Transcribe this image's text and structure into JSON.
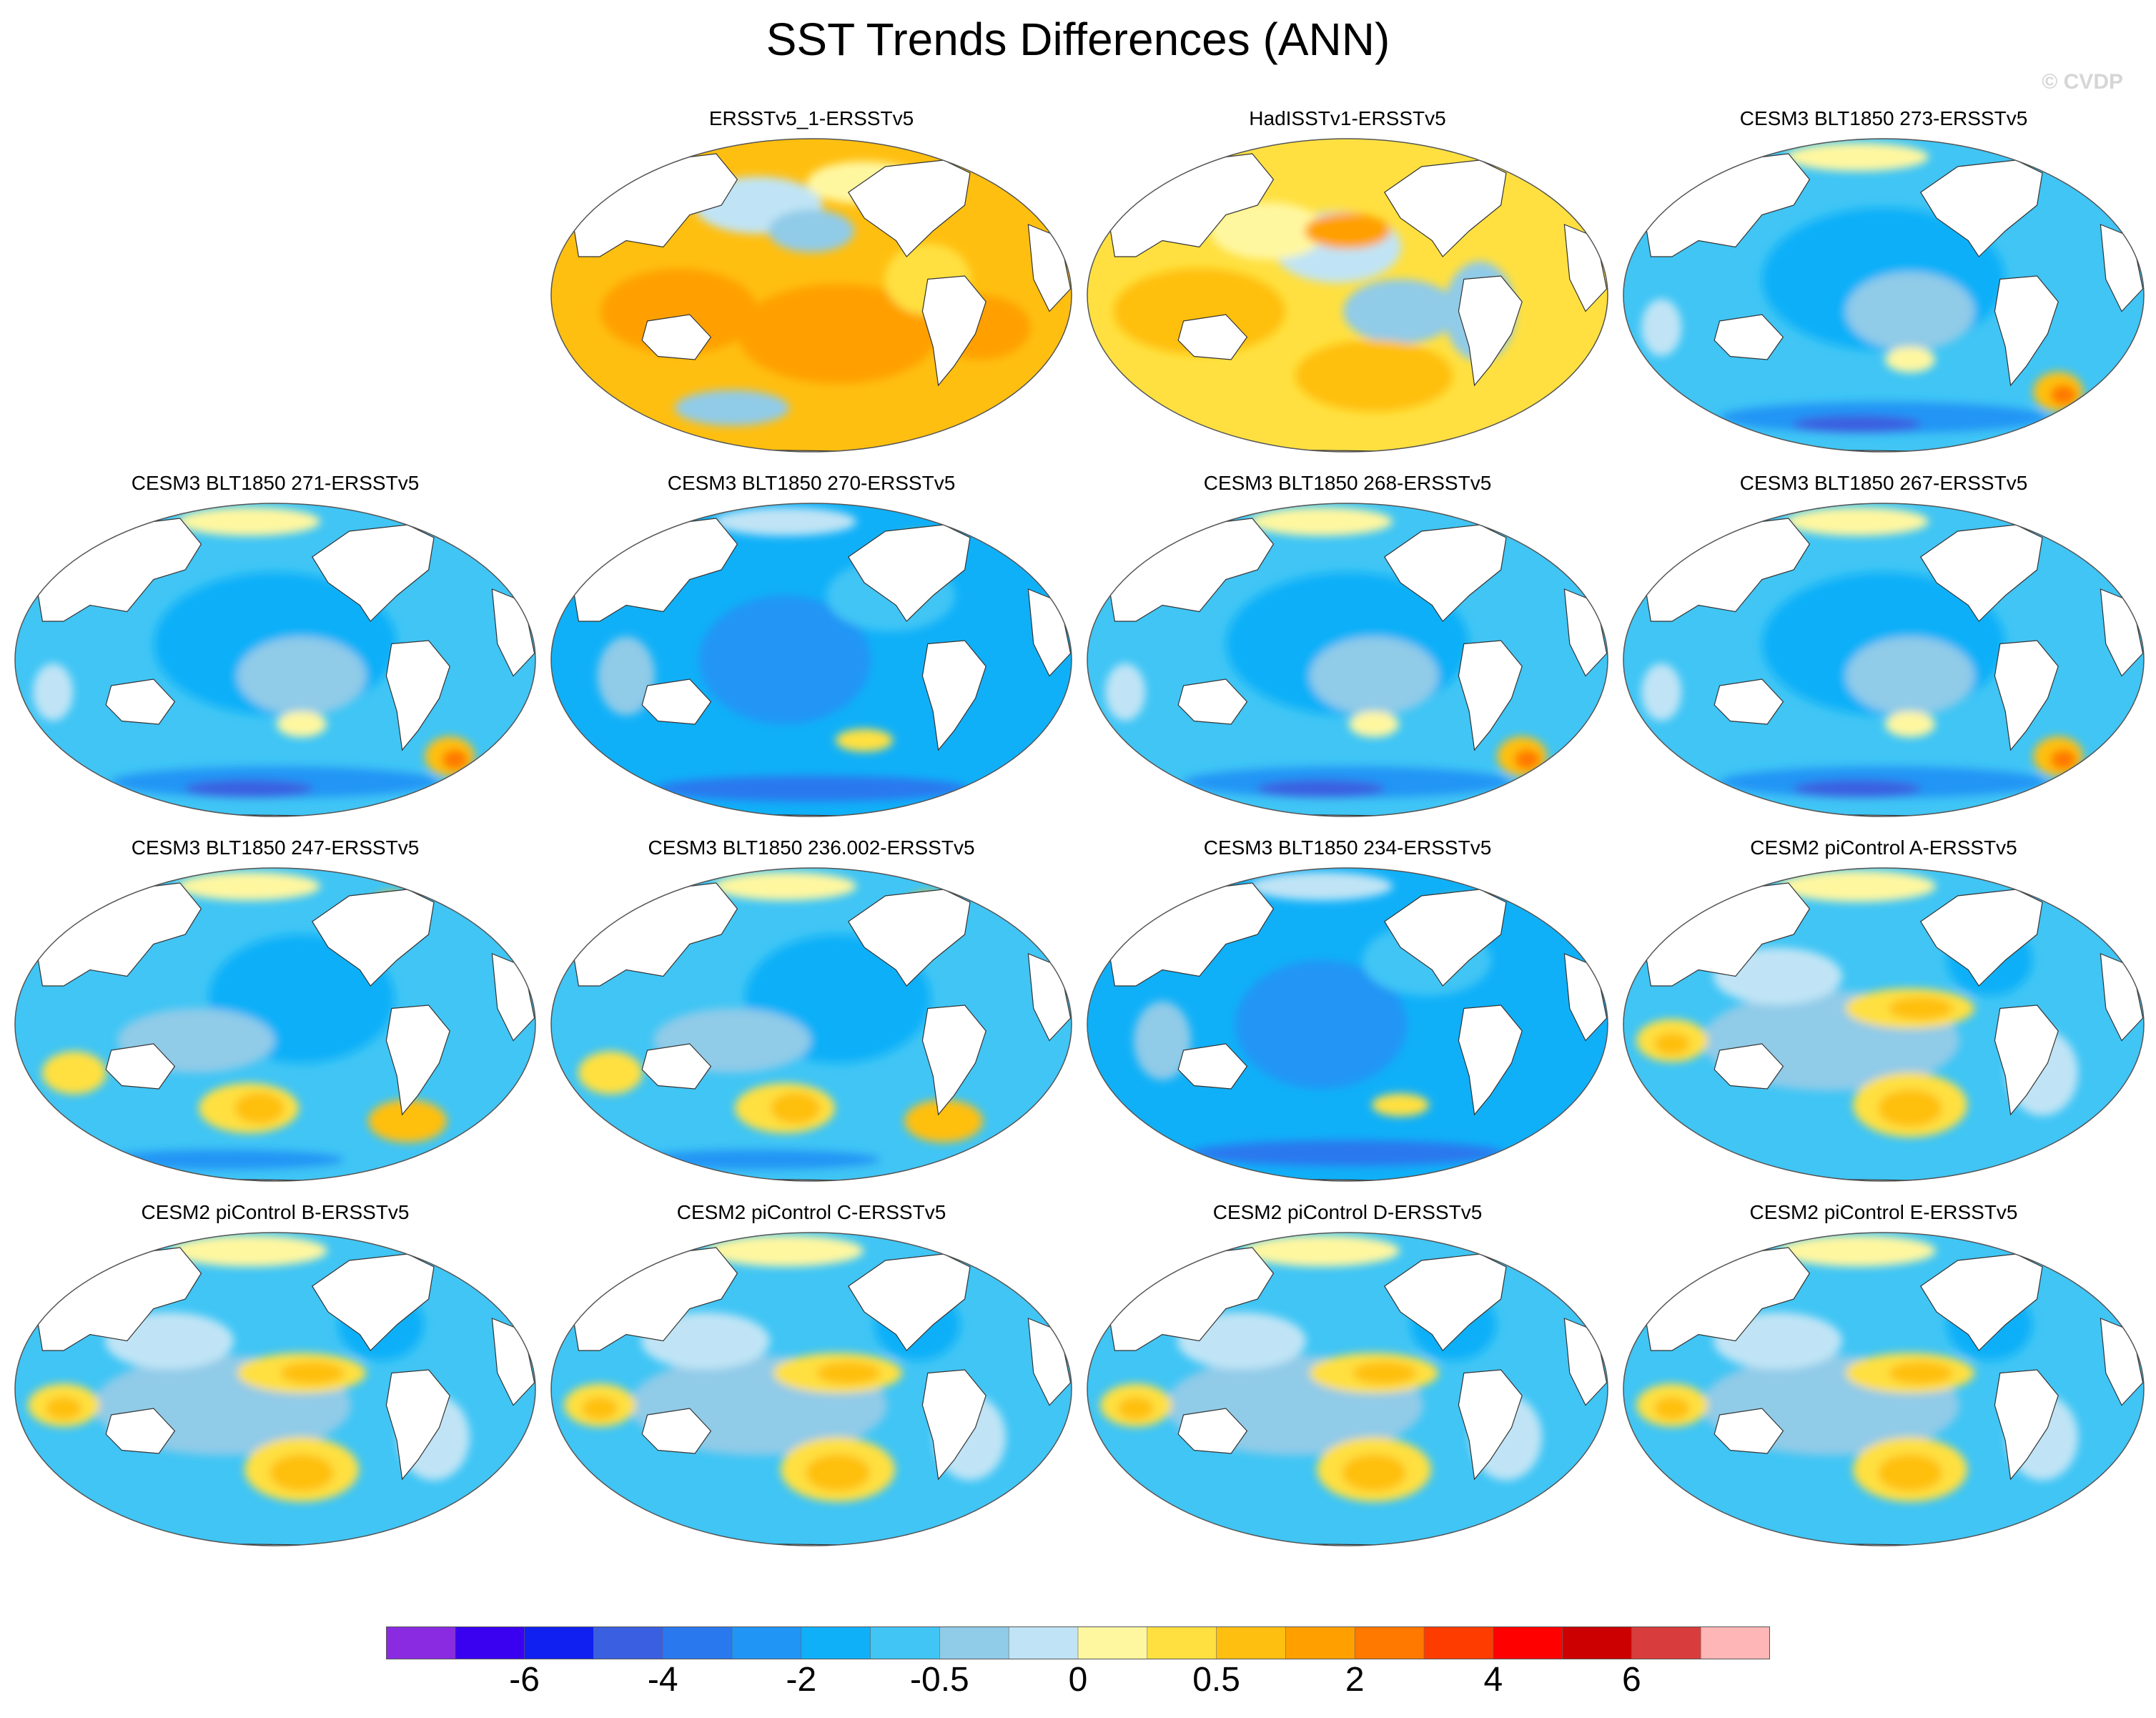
{
  "title": "SST Trends Differences (ANN)",
  "copyright": "© CVDP",
  "panels": [
    {
      "row": 0,
      "col": 1,
      "title": "ERSSTv5_1-ERSSTv5",
      "pattern": "warm_widespread"
    },
    {
      "row": 0,
      "col": 2,
      "title": "HadISSTv1-ERSSTv5",
      "pattern": "warm_mixed"
    },
    {
      "row": 0,
      "col": 3,
      "title": "CESM3 BLT1850 273-ERSSTv5",
      "pattern": "cool_south_warm_patch"
    },
    {
      "row": 1,
      "col": 0,
      "title": "CESM3 BLT1850 271-ERSSTv5",
      "pattern": "cool_south_warm_patch"
    },
    {
      "row": 1,
      "col": 1,
      "title": "CESM3 BLT1850 270-ERSSTv5",
      "pattern": "cool_strong"
    },
    {
      "row": 1,
      "col": 2,
      "title": "CESM3 BLT1850 268-ERSSTv5",
      "pattern": "cool_south_warm_patch"
    },
    {
      "row": 1,
      "col": 3,
      "title": "CESM3 BLT1850 267-ERSSTv5",
      "pattern": "cool_south_warm_patch"
    },
    {
      "row": 2,
      "col": 0,
      "title": "CESM3 BLT1850 247-ERSSTv5",
      "pattern": "cool_mixed"
    },
    {
      "row": 2,
      "col": 1,
      "title": "CESM3 BLT1850 236.002-ERSSTv5",
      "pattern": "cool_mixed"
    },
    {
      "row": 2,
      "col": 2,
      "title": "CESM3 BLT1850 234-ERSSTv5",
      "pattern": "cool_strong"
    },
    {
      "row": 2,
      "col": 3,
      "title": "CESM2 piControl A-ERSSTv5",
      "pattern": "cool_warm_bands"
    },
    {
      "row": 3,
      "col": 0,
      "title": "CESM2 piControl B-ERSSTv5",
      "pattern": "cool_warm_bands"
    },
    {
      "row": 3,
      "col": 1,
      "title": "CESM2 piControl C-ERSSTv5",
      "pattern": "cool_warm_bands"
    },
    {
      "row": 3,
      "col": 2,
      "title": "CESM2 piControl D-ERSSTv5",
      "pattern": "cool_warm_bands"
    },
    {
      "row": 3,
      "col": 3,
      "title": "CESM2 piControl E-ERSSTv5",
      "pattern": "cool_warm_bands"
    }
  ],
  "colorbar": {
    "colors": [
      "#8a2be2",
      "#3a00f0",
      "#1020f0",
      "#3a5fe0",
      "#2a78ee",
      "#2095f5",
      "#10b0f8",
      "#40c5f5",
      "#90cbe8",
      "#c0e4f5",
      "#fff7a0",
      "#ffe040",
      "#ffbf10",
      "#ffa000",
      "#ff7800",
      "#ff3c00",
      "#ff0000",
      "#cc0000",
      "#d83c3c",
      "#ffb6b6"
    ],
    "labels": [
      {
        "text": "-6",
        "boundary": 2
      },
      {
        "text": "-4",
        "boundary": 4
      },
      {
        "text": "-2",
        "boundary": 6
      },
      {
        "text": "-0.5",
        "boundary": 8
      },
      {
        "text": "0",
        "boundary": 10
      },
      {
        "text": "0.5",
        "boundary": 12
      },
      {
        "text": "2",
        "boundary": 14
      },
      {
        "text": "4",
        "boundary": 16
      },
      {
        "text": "6",
        "boundary": 18
      }
    ]
  }
}
